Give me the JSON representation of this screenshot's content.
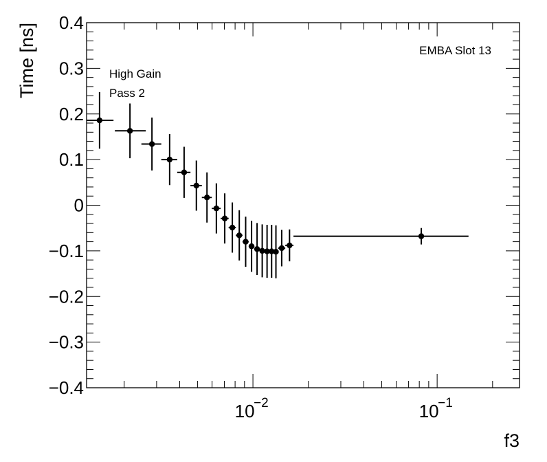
{
  "chart_data": {
    "type": "scatter",
    "xlabel": "f3",
    "ylabel": "Time [ns]",
    "x_scale": "log",
    "xlim": [
      0.00125,
      0.28
    ],
    "ylim": [
      -0.4,
      0.4
    ],
    "y_ticks": [
      -0.4,
      -0.3,
      -0.2,
      -0.1,
      0,
      0.1,
      0.2,
      0.3,
      0.4
    ],
    "y_tick_labels": [
      "−0.4",
      "−0.3",
      "−0.2",
      "−0.1",
      "0",
      "0.1",
      "0.2",
      "0.3",
      "0.4"
    ],
    "x_ticks": [
      0.01,
      0.1
    ],
    "annotations": [
      "High Gain",
      "Pass 2",
      "EMBA Slot 13"
    ],
    "grid": false,
    "legend": "none",
    "points": [
      {
        "x": 0.00147,
        "y": 0.186,
        "xlo": 0.00125,
        "xhi": 0.00175,
        "err": 0.062
      },
      {
        "x": 0.00215,
        "y": 0.163,
        "xlo": 0.00178,
        "xhi": 0.00262,
        "err": 0.06
      },
      {
        "x": 0.00283,
        "y": 0.134,
        "xlo": 0.00248,
        "xhi": 0.00318,
        "err": 0.058
      },
      {
        "x": 0.00353,
        "y": 0.1,
        "xlo": 0.00318,
        "xhi": 0.00388,
        "err": 0.056
      },
      {
        "x": 0.00423,
        "y": 0.072,
        "xlo": 0.00388,
        "xhi": 0.00458,
        "err": 0.056
      },
      {
        "x": 0.00493,
        "y": 0.043,
        "xlo": 0.00458,
        "xhi": 0.00528,
        "err": 0.055
      },
      {
        "x": 0.00563,
        "y": 0.017,
        "xlo": 0.00528,
        "xhi": 0.00598,
        "err": 0.055
      },
      {
        "x": 0.00633,
        "y": -0.007,
        "xlo": 0.00598,
        "xhi": 0.00668,
        "err": 0.055
      },
      {
        "x": 0.00703,
        "y": -0.029,
        "xlo": 0.00668,
        "xhi": 0.00738,
        "err": 0.055
      },
      {
        "x": 0.00773,
        "y": -0.049,
        "xlo": 0.00738,
        "xhi": 0.00808,
        "err": 0.055
      },
      {
        "x": 0.00843,
        "y": -0.066,
        "xlo": 0.00808,
        "xhi": 0.00878,
        "err": 0.055
      },
      {
        "x": 0.00913,
        "y": -0.08,
        "xlo": 0.00878,
        "xhi": 0.00948,
        "err": 0.055
      },
      {
        "x": 0.00983,
        "y": -0.09,
        "xlo": 0.00948,
        "xhi": 0.01018,
        "err": 0.056
      },
      {
        "x": 0.01053,
        "y": -0.096,
        "xlo": 0.01018,
        "xhi": 0.01088,
        "err": 0.057
      },
      {
        "x": 0.01123,
        "y": -0.1,
        "xlo": 0.01088,
        "xhi": 0.01158,
        "err": 0.058
      },
      {
        "x": 0.01193,
        "y": -0.101,
        "xlo": 0.01158,
        "xhi": 0.01228,
        "err": 0.058
      },
      {
        "x": 0.01263,
        "y": -0.101,
        "xlo": 0.01228,
        "xhi": 0.01298,
        "err": 0.058
      },
      {
        "x": 0.01333,
        "y": -0.102,
        "xlo": 0.01298,
        "xhi": 0.01368,
        "err": 0.058
      },
      {
        "x": 0.01433,
        "y": -0.094,
        "xlo": 0.01368,
        "xhi": 0.01498,
        "err": 0.04
      },
      {
        "x": 0.0158,
        "y": -0.088,
        "xlo": 0.01498,
        "xhi": 0.0166,
        "err": 0.035
      },
      {
        "x": 0.082,
        "y": -0.068,
        "xlo": 0.0166,
        "xhi": 0.148,
        "err": 0.018
      }
    ]
  }
}
